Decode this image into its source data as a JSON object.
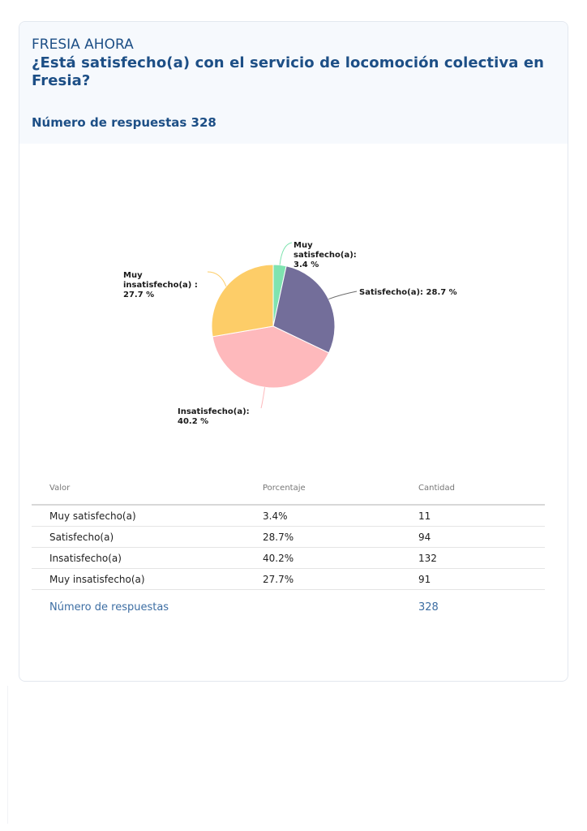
{
  "header": {
    "survey_name": "FRESIA AHORA",
    "question": "¿Está satisfecho(a) con el servicio de locomoción colectiva en Fresia?",
    "responses_label": "Número de respuestas 328"
  },
  "chart_data": {
    "type": "pie",
    "title": "",
    "categories": [
      "Muy satisfecho(a)",
      "Satisfecho(a)",
      "Insatisfecho(a)",
      "Muy insatisfecho(a)"
    ],
    "values": [
      3.4,
      28.7,
      40.2,
      27.7
    ],
    "colors": [
      "#7fe3b0",
      "#736e9a",
      "#feb9bc",
      "#fdcd68"
    ],
    "labels": [
      [
        "Muy",
        "satisfecho(a):",
        "3.4 %"
      ],
      [
        "Satisfecho(a): 28.7 %"
      ],
      [
        "Insatisfecho(a):",
        "40.2 %"
      ],
      [
        "Muy",
        "insatisfecho(a) :",
        "27.7 %"
      ]
    ]
  },
  "table": {
    "headers": [
      "Valor",
      "Porcentaje",
      "Cantidad"
    ],
    "rows": [
      [
        "Muy satisfecho(a)",
        "3.4%",
        "11"
      ],
      [
        "Satisfecho(a)",
        "28.7%",
        "94"
      ],
      [
        "Insatisfecho(a)",
        "40.2%",
        "132"
      ],
      [
        "Muy insatisfecho(a)",
        "27.7%",
        "91"
      ]
    ],
    "total_label": "Número de respuestas",
    "total_value": "328"
  }
}
